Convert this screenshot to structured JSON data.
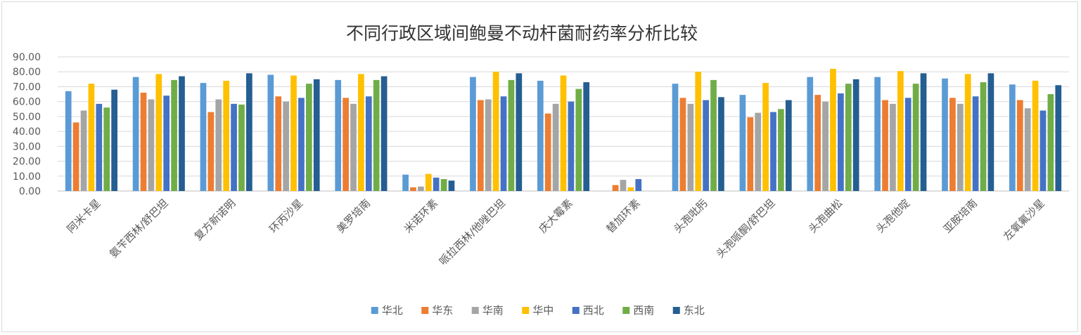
{
  "chart_data": {
    "type": "bar",
    "title": "不同行政区域间鲍曼不动杆菌耐药率分析比较",
    "xlabel": "",
    "ylabel": "",
    "ylim": [
      0,
      90
    ],
    "ytick_labels": [
      "0.00",
      "10.00",
      "20.00",
      "30.00",
      "40.00",
      "50.00",
      "60.00",
      "70.00",
      "80.00",
      "90.00"
    ],
    "grid": true,
    "legend_position": "bottom",
    "categories": [
      "阿米卡星",
      "氨苄西林/舒巴坦",
      "复方新诺明",
      "环丙沙星",
      "美罗培南",
      "米诺环素",
      "哌拉西林/他唑巴坦",
      "庆大霉素",
      "替加环素",
      "头孢吡肟",
      "头孢哌酮/舒巴坦",
      "头孢曲松",
      "头孢他啶",
      "亚胺培南",
      "左氧氟沙星"
    ],
    "series": [
      {
        "name": "华北",
        "color": "#5b9bd5",
        "values": [
          67,
          76.5,
          72.5,
          78,
          74.5,
          11,
          76.5,
          74,
          0,
          72,
          64.5,
          76.5,
          76.5,
          75.5,
          71.5
        ]
      },
      {
        "name": "华东",
        "color": "#ed7d31",
        "values": [
          46,
          66,
          53,
          63.5,
          62.5,
          2.5,
          61,
          52,
          4,
          62.5,
          49.5,
          64.5,
          61,
          62.5,
          61
        ]
      },
      {
        "name": "华南",
        "color": "#a5a5a5",
        "values": [
          54,
          61.5,
          61.5,
          60,
          58.5,
          3,
          61.5,
          58.5,
          7.5,
          58.5,
          52.5,
          60,
          58.5,
          58.5,
          55.5
        ]
      },
      {
        "name": "华中",
        "color": "#ffc000",
        "values": [
          72,
          78.5,
          74,
          77.5,
          78.5,
          11.5,
          80,
          77.5,
          2.5,
          80,
          72.5,
          82,
          80.5,
          78.5,
          74
        ]
      },
      {
        "name": "西北",
        "color": "#4472c4",
        "values": [
          58.5,
          64,
          58.5,
          62.5,
          63.5,
          9,
          63.5,
          60,
          8,
          61,
          53,
          65.5,
          62.5,
          63.5,
          54
        ]
      },
      {
        "name": "西南",
        "color": "#70ad47",
        "values": [
          56,
          74.5,
          58,
          72,
          74.5,
          8,
          74.5,
          68.5,
          0,
          74.5,
          55,
          72,
          72,
          73,
          65
        ]
      },
      {
        "name": "东北",
        "color": "#255e91",
        "values": [
          68,
          77,
          79,
          75,
          77,
          7,
          79,
          73,
          0,
          63,
          61,
          75,
          79,
          79,
          71
        ]
      }
    ]
  }
}
